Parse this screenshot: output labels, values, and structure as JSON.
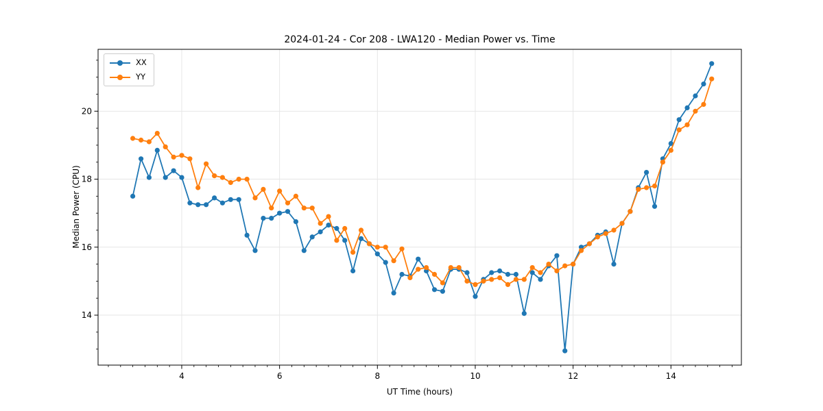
{
  "figure": {
    "title": "2024-01-24 - Cor 208 - LWA120 - Median Power vs. Time",
    "xlabel": "UT Time (hours)",
    "ylabel": "Median Power (CPU)"
  },
  "legend": {
    "items": [
      {
        "label": "XX",
        "color": "#1f77b4"
      },
      {
        "label": "YY",
        "color": "#ff7f0e"
      }
    ]
  },
  "chart_data": {
    "type": "line",
    "title": "2024-01-24 - Cor 208 - LWA120 - Median Power vs. Time",
    "xlabel": "UT Time (hours)",
    "ylabel": "Median Power (CPU)",
    "grid": true,
    "legend_position": "upper-left",
    "xlim": [
      2.29,
      15.44
    ],
    "ylim": [
      12.53,
      21.82
    ],
    "x_major_ticks": [
      4,
      6,
      8,
      10,
      12,
      14
    ],
    "y_major_ticks": [
      14,
      16,
      18,
      20
    ],
    "x_minor_step": 0.25,
    "y_minor_step": 0.5,
    "x": [
      3,
      3.167,
      3.333,
      3.5,
      3.667,
      3.833,
      4,
      4.167,
      4.333,
      4.5,
      4.667,
      4.833,
      5,
      5.167,
      5.333,
      5.5,
      5.667,
      5.833,
      6,
      6.167,
      6.333,
      6.5,
      6.667,
      6.833,
      7,
      7.167,
      7.333,
      7.5,
      7.667,
      7.833,
      8,
      8.167,
      8.333,
      8.5,
      8.667,
      8.833,
      9,
      9.167,
      9.333,
      9.5,
      9.667,
      9.833,
      10,
      10.167,
      10.333,
      10.5,
      10.667,
      10.833,
      11,
      11.167,
      11.333,
      11.5,
      11.667,
      11.833,
      12,
      12.167,
      12.333,
      12.5,
      12.667,
      12.833,
      13,
      13.167,
      13.333,
      13.5,
      13.667,
      13.833,
      14,
      14.167,
      14.333,
      14.5,
      14.667,
      14.833
    ],
    "series": [
      {
        "name": "XX",
        "color": "#1f77b4",
        "values": [
          17.5,
          18.6,
          18.05,
          18.85,
          18.05,
          18.25,
          18.05,
          17.3,
          17.25,
          17.25,
          17.45,
          17.3,
          17.4,
          17.4,
          16.35,
          15.9,
          16.85,
          16.85,
          17.0,
          17.05,
          16.75,
          15.9,
          16.3,
          16.45,
          16.65,
          16.55,
          16.2,
          15.3,
          16.25,
          16.1,
          15.8,
          15.55,
          14.65,
          15.2,
          15.15,
          15.65,
          15.3,
          14.75,
          14.7,
          15.35,
          15.35,
          15.25,
          14.55,
          15.05,
          15.25,
          15.3,
          15.2,
          15.2,
          14.05,
          15.25,
          15.05,
          15.45,
          15.75,
          12.95,
          15.5,
          16.0,
          16.1,
          16.35,
          16.45,
          15.5,
          16.7,
          17.05,
          17.75,
          18.2,
          17.2,
          18.6,
          19.05,
          19.75,
          20.1,
          20.45,
          20.8,
          21.4
        ]
      },
      {
        "name": "YY",
        "color": "#ff7f0e",
        "values": [
          19.2,
          19.15,
          19.1,
          19.35,
          18.95,
          18.65,
          18.7,
          18.6,
          17.75,
          18.45,
          18.1,
          18.05,
          17.9,
          18.0,
          18.0,
          17.45,
          17.7,
          17.15,
          17.65,
          17.3,
          17.5,
          17.15,
          17.15,
          16.7,
          16.9,
          16.2,
          16.55,
          15.85,
          16.5,
          16.1,
          16.0,
          16.0,
          15.6,
          15.95,
          15.1,
          15.35,
          15.4,
          15.2,
          14.95,
          15.4,
          15.4,
          15.0,
          14.9,
          15.0,
          15.05,
          15.1,
          14.9,
          15.05,
          15.05,
          15.4,
          15.25,
          15.5,
          15.3,
          15.45,
          15.5,
          15.9,
          16.1,
          16.3,
          16.4,
          16.5,
          16.7,
          17.05,
          17.7,
          17.75,
          17.8,
          18.5,
          18.85,
          19.45,
          19.6,
          20.0,
          20.2,
          20.95
        ]
      }
    ]
  }
}
